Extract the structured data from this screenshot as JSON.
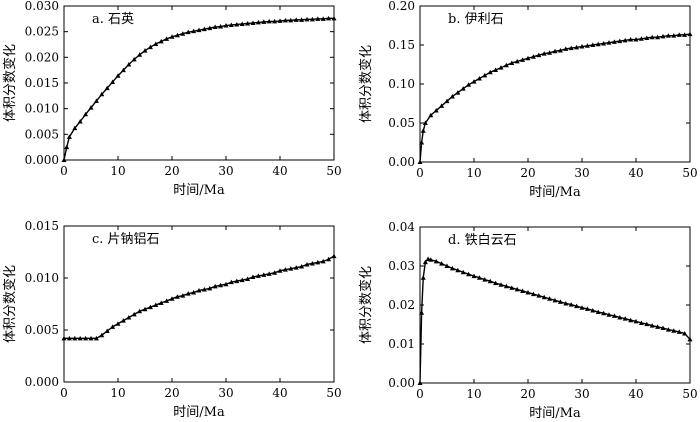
{
  "chart_data": [
    {
      "type": "line",
      "title": "a. 石英",
      "xlabel": "时间/Ma",
      "ylabel": "体积分数变化",
      "xlim": [
        0,
        50
      ],
      "ylim": [
        0,
        0.03
      ],
      "xticks": [
        "0",
        "10",
        "20",
        "30",
        "40",
        "50"
      ],
      "yticks": [
        "0.000",
        "0.005",
        "0.010",
        "0.015",
        "0.020",
        "0.025",
        "0.030"
      ],
      "grid": false,
      "marker": "triangle",
      "series": [
        {
          "x": [
            0,
            0.5,
            1,
            2,
            3,
            4,
            5,
            6,
            7,
            8,
            9,
            10,
            11,
            12,
            13,
            14,
            15,
            16,
            17,
            18,
            19,
            20,
            21,
            22,
            23,
            24,
            25,
            26,
            27,
            28,
            29,
            30,
            31,
            32,
            33,
            34,
            35,
            36,
            37,
            38,
            39,
            40,
            41,
            42,
            43,
            44,
            45,
            46,
            47,
            48,
            49,
            50
          ],
          "y": [
            0,
            0.0025,
            0.0045,
            0.0062,
            0.0075,
            0.0089,
            0.0102,
            0.0115,
            0.0128,
            0.014,
            0.0152,
            0.0164,
            0.0175,
            0.0186,
            0.0196,
            0.0205,
            0.0213,
            0.022,
            0.0226,
            0.0231,
            0.0236,
            0.024,
            0.0243,
            0.0246,
            0.0249,
            0.0251,
            0.0253,
            0.0255,
            0.0257,
            0.0259,
            0.026,
            0.0262,
            0.0263,
            0.0264,
            0.0265,
            0.0266,
            0.0267,
            0.0268,
            0.0269,
            0.027,
            0.027,
            0.0271,
            0.0272,
            0.0272,
            0.0273,
            0.0273,
            0.0274,
            0.0274,
            0.0275,
            0.0275,
            0.0276,
            0.0276
          ]
        }
      ]
    },
    {
      "type": "line",
      "title": "b. 伊利石",
      "xlabel": "时间/Ma",
      "ylabel": "体积分数变化",
      "xlim": [
        0,
        50
      ],
      "ylim": [
        0,
        0.2
      ],
      "xticks": [
        "0",
        "10",
        "20",
        "30",
        "40",
        "50"
      ],
      "yticks": [
        "0.00",
        "0.05",
        "0.10",
        "0.15",
        "0.20"
      ],
      "grid": false,
      "marker": "triangle",
      "series": [
        {
          "x": [
            0,
            0.3,
            0.6,
            1,
            2,
            3,
            4,
            5,
            6,
            7,
            8,
            9,
            10,
            11,
            12,
            13,
            14,
            15,
            16,
            17,
            18,
            19,
            20,
            21,
            22,
            23,
            24,
            25,
            26,
            27,
            28,
            29,
            30,
            31,
            32,
            33,
            34,
            35,
            36,
            37,
            38,
            39,
            40,
            41,
            42,
            43,
            44,
            45,
            46,
            47,
            48,
            49,
            50
          ],
          "y": [
            0,
            0.025,
            0.04,
            0.05,
            0.06,
            0.066,
            0.072,
            0.078,
            0.084,
            0.089,
            0.094,
            0.099,
            0.103,
            0.107,
            0.111,
            0.115,
            0.118,
            0.121,
            0.124,
            0.127,
            0.129,
            0.131,
            0.133,
            0.135,
            0.137,
            0.139,
            0.14,
            0.142,
            0.143,
            0.145,
            0.146,
            0.147,
            0.148,
            0.149,
            0.15,
            0.151,
            0.152,
            0.153,
            0.154,
            0.155,
            0.156,
            0.157,
            0.157,
            0.158,
            0.159,
            0.16,
            0.16,
            0.161,
            0.162,
            0.162,
            0.163,
            0.163,
            0.164
          ]
        }
      ]
    },
    {
      "type": "line",
      "title": "c. 片钠铝石",
      "xlabel": "时间/Ma",
      "ylabel": "体积分数变化",
      "xlim": [
        0,
        50
      ],
      "ylim": [
        0,
        0.015
      ],
      "xticks": [
        "0",
        "10",
        "20",
        "30",
        "40",
        "50"
      ],
      "yticks": [
        "0.000",
        "0.005",
        "0.010",
        "0.015"
      ],
      "grid": false,
      "marker": "triangle",
      "series": [
        {
          "x": [
            0,
            1,
            2,
            3,
            4,
            5,
            6,
            7,
            8,
            9,
            10,
            11,
            12,
            13,
            14,
            15,
            16,
            17,
            18,
            19,
            20,
            21,
            22,
            23,
            24,
            25,
            26,
            27,
            28,
            29,
            30,
            31,
            32,
            33,
            34,
            35,
            36,
            37,
            38,
            39,
            40,
            41,
            42,
            43,
            44,
            45,
            46,
            47,
            48,
            49,
            50
          ],
          "y": [
            0.0042,
            0.0042,
            0.0042,
            0.0042,
            0.0042,
            0.0042,
            0.0042,
            0.0045,
            0.0049,
            0.0053,
            0.0056,
            0.0059,
            0.0062,
            0.0065,
            0.0068,
            0.007,
            0.0072,
            0.0074,
            0.0076,
            0.0078,
            0.008,
            0.0082,
            0.0083,
            0.0085,
            0.0086,
            0.0088,
            0.0089,
            0.009,
            0.0092,
            0.0093,
            0.0094,
            0.0096,
            0.0097,
            0.0098,
            0.0099,
            0.0101,
            0.0102,
            0.0103,
            0.0104,
            0.0105,
            0.0107,
            0.0108,
            0.0109,
            0.011,
            0.0111,
            0.0113,
            0.0114,
            0.0115,
            0.0116,
            0.0118,
            0.0121
          ]
        }
      ]
    },
    {
      "type": "line",
      "title": "d. 铁白云石",
      "xlabel": "时间/Ma",
      "ylabel": "体积分数变化",
      "xlim": [
        0,
        50
      ],
      "ylim": [
        0,
        0.04
      ],
      "xticks": [
        "0",
        "10",
        "20",
        "30",
        "40",
        "50"
      ],
      "yticks": [
        "0.00",
        "0.01",
        "0.02",
        "0.03",
        "0.04"
      ],
      "grid": false,
      "marker": "triangle",
      "series": [
        {
          "x": [
            0,
            0.3,
            0.6,
            1,
            1.5,
            2,
            3,
            4,
            5,
            6,
            7,
            8,
            9,
            10,
            11,
            12,
            13,
            14,
            15,
            16,
            17,
            18,
            19,
            20,
            21,
            22,
            23,
            24,
            25,
            26,
            27,
            28,
            29,
            30,
            31,
            32,
            33,
            34,
            35,
            36,
            37,
            38,
            39,
            40,
            41,
            42,
            43,
            44,
            45,
            46,
            47,
            48,
            49,
            50
          ],
          "y": [
            0,
            0.018,
            0.027,
            0.031,
            0.0318,
            0.0316,
            0.0312,
            0.0306,
            0.03,
            0.0294,
            0.0289,
            0.0284,
            0.0279,
            0.0274,
            0.027,
            0.0265,
            0.0261,
            0.0256,
            0.0252,
            0.0248,
            0.0244,
            0.024,
            0.0236,
            0.0232,
            0.0228,
            0.0224,
            0.022,
            0.0216,
            0.0212,
            0.0208,
            0.0204,
            0.0201,
            0.0197,
            0.0193,
            0.019,
            0.0186,
            0.0182,
            0.0179,
            0.0175,
            0.0172,
            0.0168,
            0.0165,
            0.0161,
            0.0158,
            0.0154,
            0.0151,
            0.0147,
            0.0144,
            0.0141,
            0.0137,
            0.0134,
            0.0131,
            0.0127,
            0.0112
          ]
        }
      ]
    }
  ]
}
